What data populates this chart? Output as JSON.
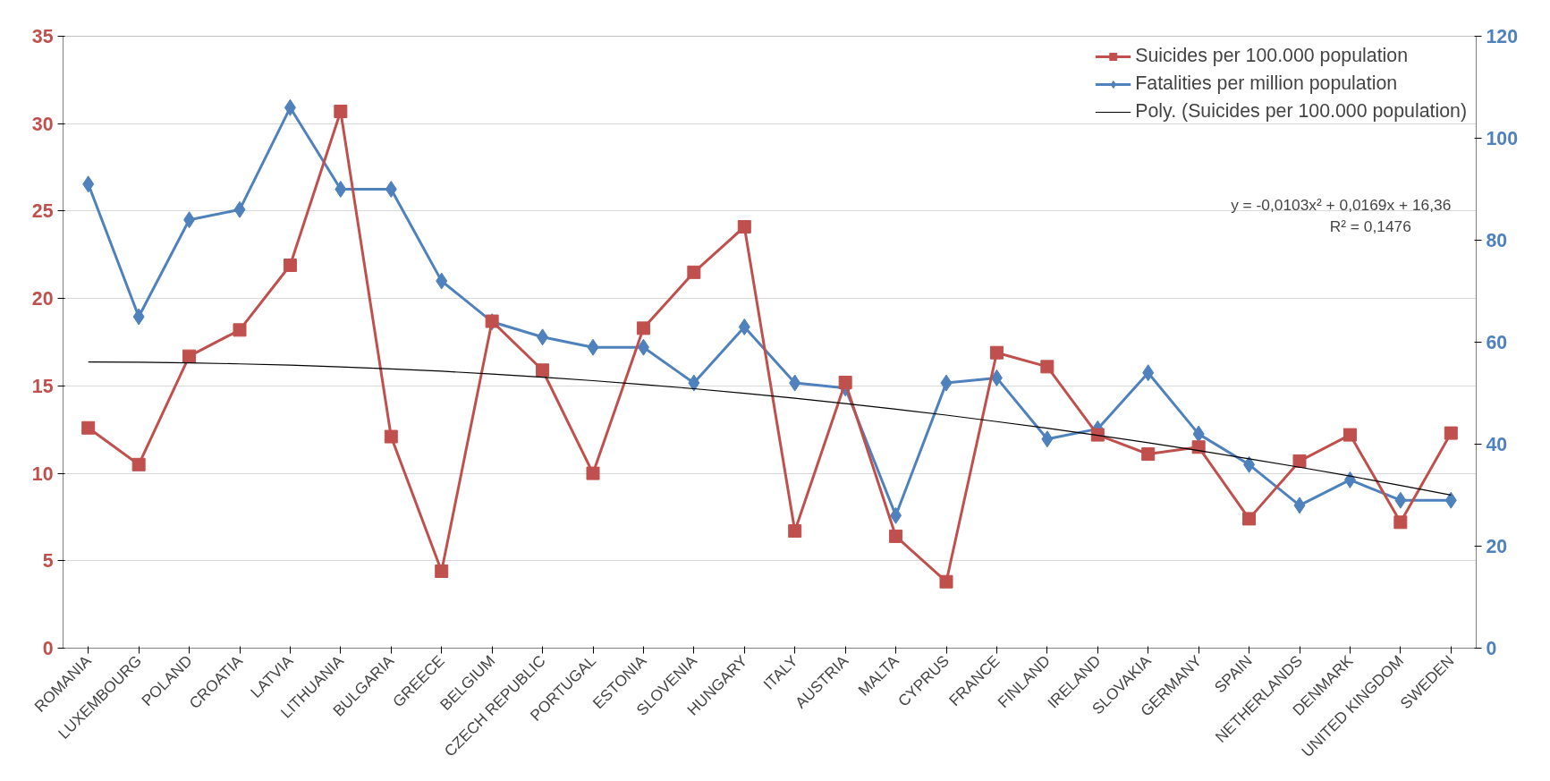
{
  "chart_data": {
    "type": "line",
    "categories": [
      "ROMANIA",
      "LUXEMBOURG",
      "POLAND",
      "CROATIA",
      "LATVIA",
      "LITHUANIA",
      "BULGARIA",
      "GREECE",
      "BELGIUM",
      "CZECH REPUBLIC",
      "PORTUGAL",
      "ESTONIA",
      "SLOVENIA",
      "HUNGARY",
      "ITALY",
      "AUSTRIA",
      "MALTA",
      "CYPRUS",
      "FRANCE",
      "FINLAND",
      "IRELAND",
      "SLOVAKIA",
      "GERMANY",
      "SPAIN",
      "NETHERLANDS",
      "DENMARK",
      "UNITED KINGDOM",
      "SWEDEN"
    ],
    "series": [
      {
        "name": "Suicides per 100.000 population",
        "color": "#c0504d",
        "marker": "square",
        "values": [
          12.6,
          10.5,
          16.7,
          18.2,
          21.9,
          30.7,
          12.1,
          4.4,
          18.7,
          15.9,
          10.0,
          18.3,
          21.5,
          24.1,
          6.7,
          15.2,
          6.4,
          3.8,
          16.9,
          16.1,
          12.2,
          11.1,
          11.5,
          7.4,
          10.7,
          12.2,
          7.2,
          12.3
        ]
      },
      {
        "name": "Fatalities per million population",
        "color": "#4f81bd",
        "marker": "diamond",
        "axis": "y2",
        "values": [
          91,
          65,
          84,
          86,
          106,
          90,
          90,
          72,
          64,
          61,
          59,
          59,
          52,
          63,
          52,
          51,
          26,
          52,
          53,
          41,
          43,
          54,
          42,
          36,
          28,
          33,
          29,
          29
        ]
      },
      {
        "name": "Poly. (Suicides per 100.000 population)",
        "color": "#000000",
        "marker": "none",
        "values": [
          16.37,
          16.35,
          16.32,
          16.26,
          16.19,
          16.09,
          15.97,
          15.84,
          15.68,
          15.5,
          15.3,
          15.08,
          14.84,
          14.58,
          14.3,
          13.99,
          13.67,
          13.33,
          12.96,
          12.58,
          12.17,
          11.75,
          11.3,
          10.83,
          10.35,
          9.84,
          9.31,
          8.76
        ]
      }
    ],
    "ylim": [
      0,
      35
    ],
    "yticks": [
      0,
      5,
      10,
      15,
      20,
      25,
      30,
      35
    ],
    "y2lim": [
      0,
      120
    ],
    "y2ticks": [
      0,
      20,
      40,
      60,
      80,
      100,
      120
    ],
    "grid": "y",
    "legend": "top right",
    "annotations": [
      "y = -0,0103x² + 0,0169x + 16,36",
      "R² = 0,1476"
    ]
  }
}
